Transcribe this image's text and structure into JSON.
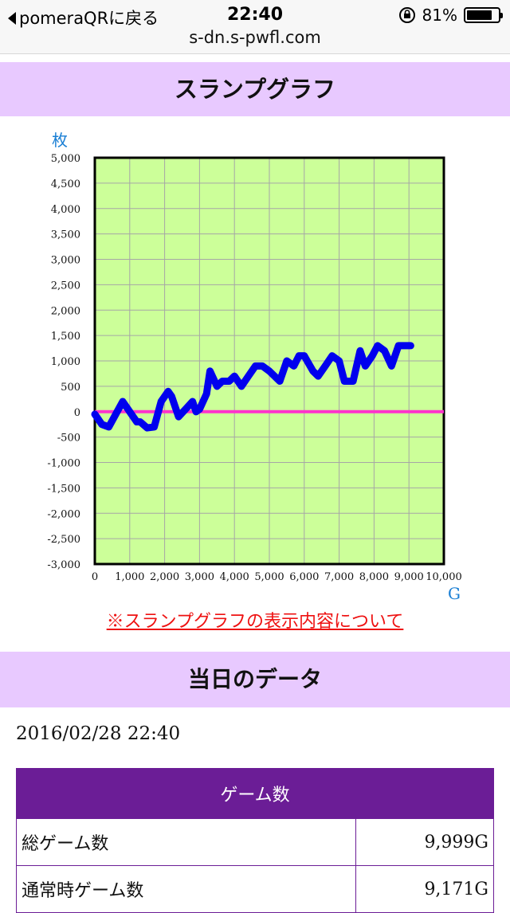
{
  "status_bar": {
    "back_label": "pomeraQRに戻る",
    "time": "22:40",
    "battery": "81%",
    "battery_level": 0.81
  },
  "browser": {
    "url": "s-dn.s-pwfl.com"
  },
  "slump_section": {
    "title": "スランプグラフ",
    "note_link": "※スランプグラフの表示内容について"
  },
  "chart_data": {
    "type": "line",
    "ylabel": "枚",
    "xlabel": "G",
    "xlim": [
      0,
      10000
    ],
    "ylim": [
      -3000,
      5000
    ],
    "x_ticks": [
      "0",
      "1,000",
      "2,000",
      "3,000",
      "4,000",
      "5,000",
      "6,000",
      "7,000",
      "8,000",
      "9,000",
      "10,000"
    ],
    "y_ticks": [
      "5,000",
      "4,500",
      "4,000",
      "3,500",
      "3,000",
      "2,500",
      "2,000",
      "1,500",
      "1,000",
      "500",
      "0",
      "-500",
      "-1,000",
      "-1,500",
      "-2,000",
      "-2,500",
      "-3,000"
    ],
    "grid": true,
    "background": "#ccff99",
    "line_color": "#0000ee",
    "zero_line_color": "#ff33cc",
    "series": [
      {
        "x": [
          0,
          200,
          400,
          800,
          1000,
          1200,
          1300,
          1500,
          1700,
          1900,
          2100,
          2200,
          2400,
          2600,
          2800,
          2900,
          3000,
          3200,
          3300,
          3500,
          3650,
          3850,
          4000,
          4200,
          4400,
          4600,
          4800,
          5000,
          5300,
          5500,
          5700,
          5850,
          6000,
          6250,
          6400,
          6600,
          6800,
          7000,
          7150,
          7400,
          7600,
          7750,
          7950,
          8100,
          8300,
          8500,
          8700,
          8900,
          9050
        ],
        "y": [
          -50,
          -250,
          -300,
          200,
          0,
          -200,
          -200,
          -320,
          -300,
          200,
          400,
          300,
          -100,
          50,
          200,
          0,
          50,
          350,
          800,
          500,
          600,
          600,
          700,
          500,
          700,
          900,
          900,
          800,
          600,
          1000,
          900,
          1100,
          1100,
          800,
          700,
          900,
          1100,
          1000,
          600,
          600,
          1200,
          900,
          1100,
          1300,
          1200,
          900,
          1300,
          1300,
          1300
        ]
      }
    ]
  },
  "today_section": {
    "title": "当日のデータ",
    "datetime": "2016/02/28 22:40",
    "table_header": "ゲーム数",
    "rows": [
      {
        "label": "総ゲーム数",
        "value": "9,999G"
      },
      {
        "label": "通常時ゲーム数",
        "value": "9,171G"
      }
    ]
  }
}
